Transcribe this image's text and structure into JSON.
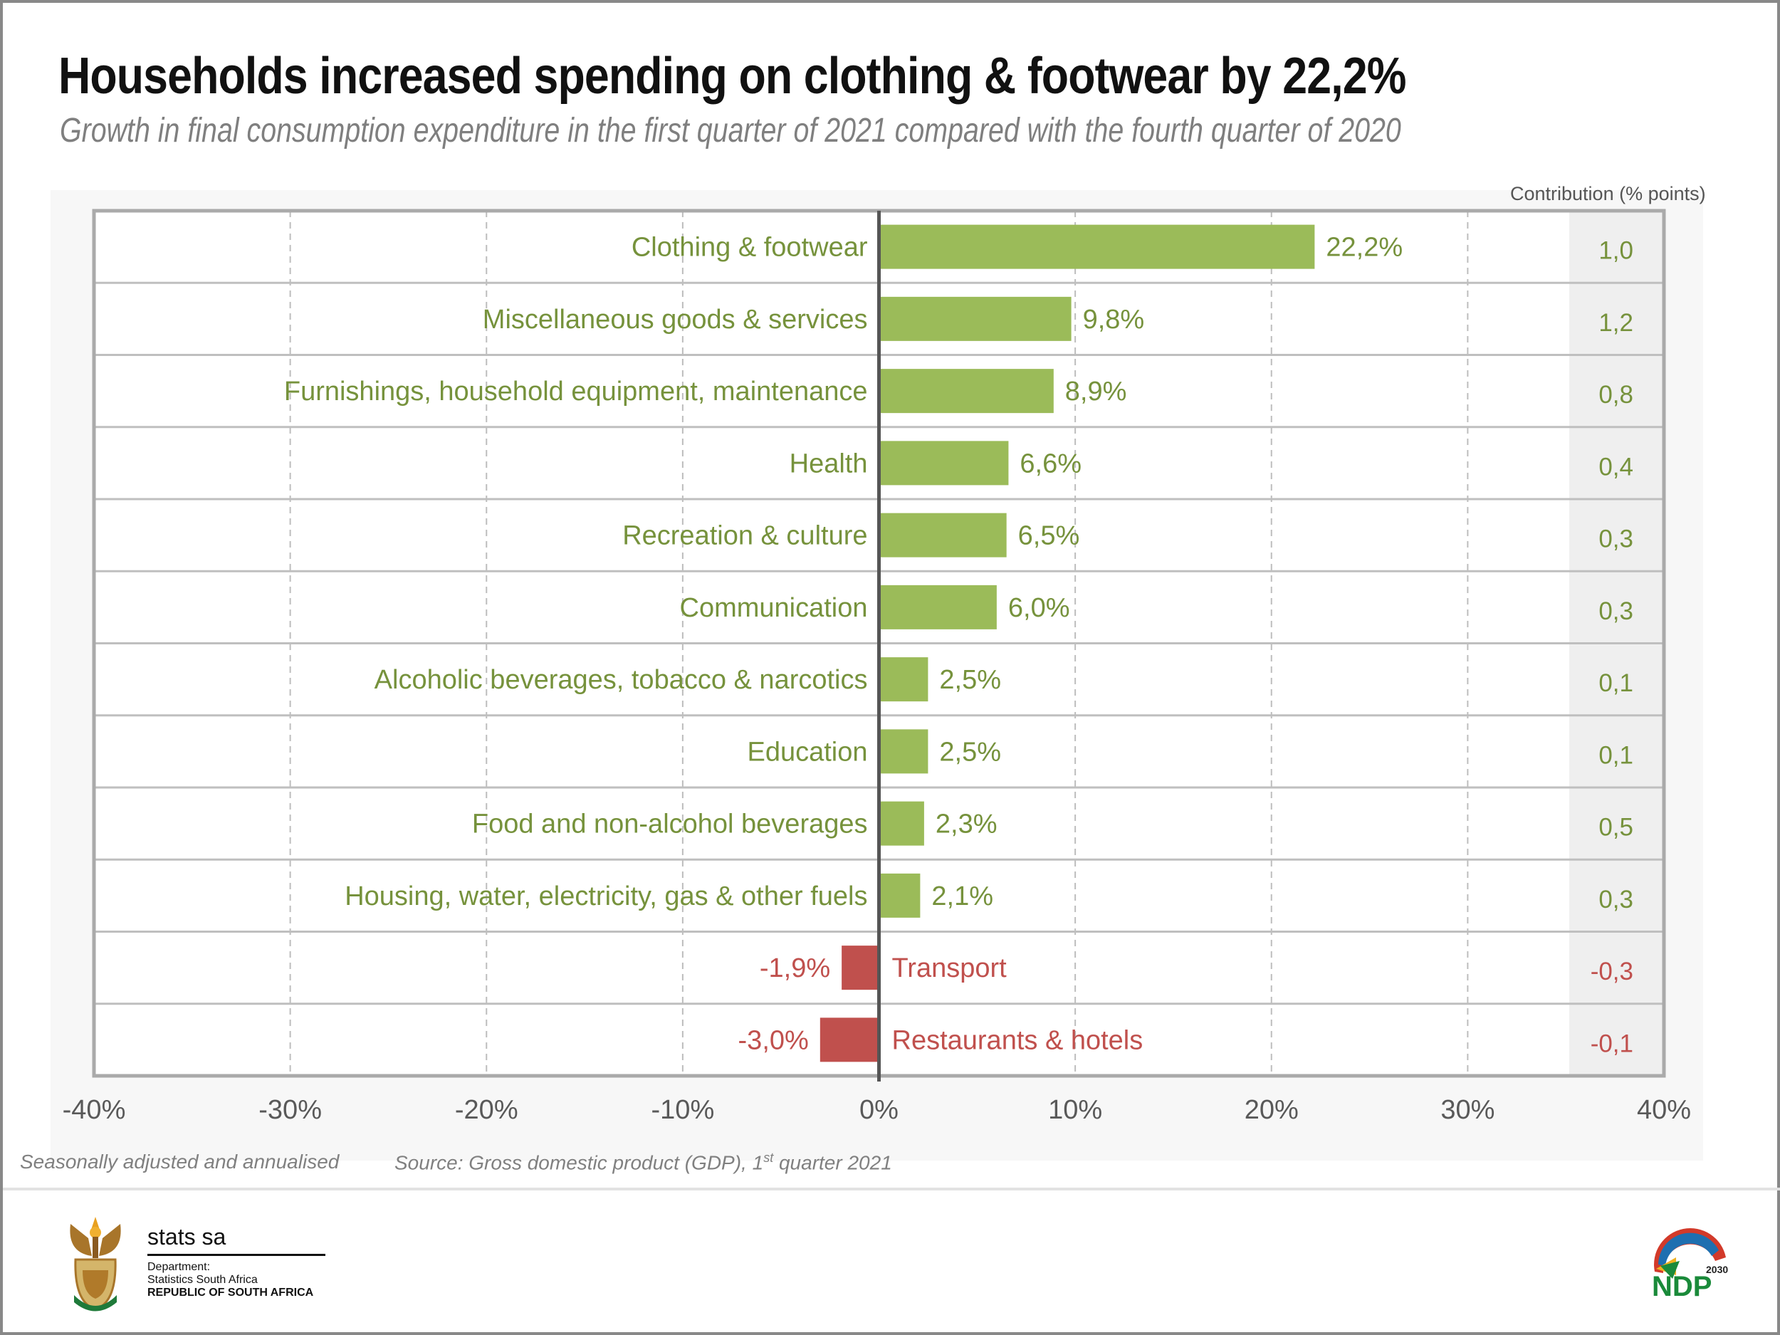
{
  "header": {
    "title": "Households increased spending on clothing & footwear by 22,2%",
    "subtitle": "Growth in final consumption expenditure in the first quarter of 2021 compared with the fourth quarter of 2020"
  },
  "chart_data": {
    "type": "bar",
    "orientation": "horizontal",
    "title": "Households increased spending on clothing & footwear by 22,2%",
    "xlabel": "",
    "ylabel": "",
    "xlim": [
      -40,
      40
    ],
    "x_ticks": [
      "-40%",
      "-30%",
      "-20%",
      "-10%",
      "0%",
      "10%",
      "20%",
      "30%",
      "40%"
    ],
    "grid": true,
    "categories": [
      "Clothing & footwear",
      "Miscellaneous goods & services",
      "Furnishings, household equipment, maintenance",
      "Health",
      "Recreation & culture",
      "Communication",
      "Alcoholic beverages, tobacco & narcotics",
      "Education",
      "Food and non-alcohol beverages",
      "Housing, water, electricity, gas & other fuels",
      "Transport",
      "Restaurants & hotels"
    ],
    "values": [
      22.2,
      9.8,
      8.9,
      6.6,
      6.5,
      6.0,
      2.5,
      2.5,
      2.3,
      2.1,
      -1.9,
      -3.0
    ],
    "value_labels": [
      "22,2%",
      "9,8%",
      "8,9%",
      "6,6%",
      "6,5%",
      "6,0%",
      "2,5%",
      "2,5%",
      "2,3%",
      "2,1%",
      "-1,9%",
      "-3,0%"
    ],
    "contribution_header": "Contribution (% points)",
    "contribution": [
      "1,0",
      "1,2",
      "0,8",
      "0,4",
      "0,3",
      "0,3",
      "0,1",
      "0,1",
      "0,5",
      "0,3",
      "-0,3",
      "-0,1"
    ],
    "colors": {
      "positive": "#9bbb59",
      "positive_text": "#76923c",
      "negative": "#c0504d"
    }
  },
  "footer": {
    "note": "Seasonally adjusted and annualised",
    "source_prefix": "Source: Gross domestic product (GDP), 1",
    "source_sup": "st",
    "source_suffix": " quarter 2021"
  },
  "logo": {
    "name": "stats sa",
    "line1": "Department:",
    "line2": "Statistics South Africa",
    "line3": "REPUBLIC OF SOUTH AFRICA",
    "ndp": "NDP",
    "ndp_year": "2030"
  }
}
